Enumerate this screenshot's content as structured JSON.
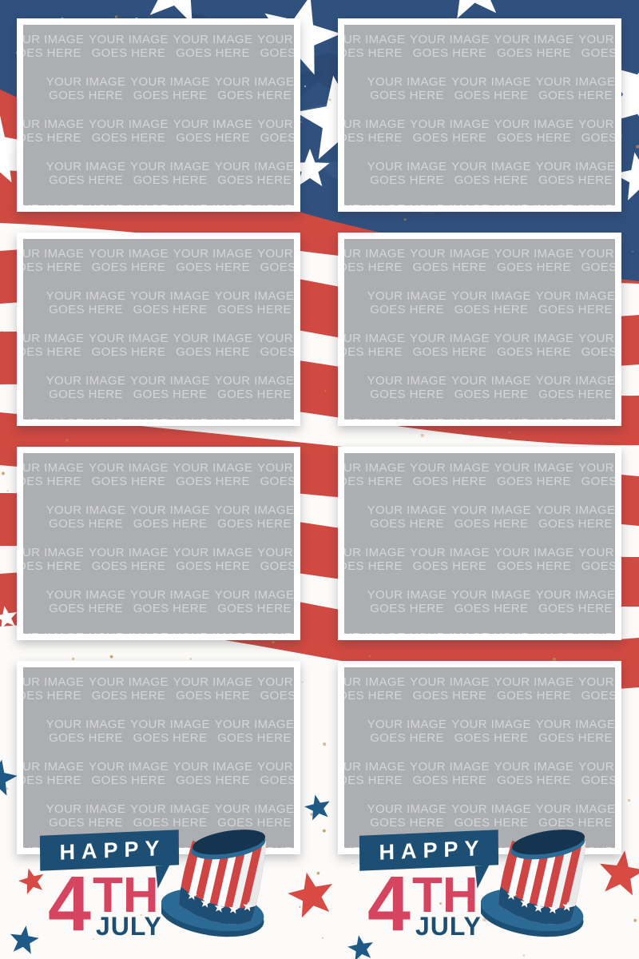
{
  "placeholder": {
    "line1": "YOUR IMAGE",
    "line2": "GOES HERE",
    "slot_count": 8
  },
  "logo": {
    "happy": "HAPPY",
    "day": "4",
    "suffix": "TH",
    "month": "JULY"
  },
  "logos_count": 2,
  "icons": {
    "hat": "uncle-sam-hat-icon",
    "star": "star-icon",
    "banner": "speech-banner"
  },
  "colors": {
    "page_bg": "#fcfbf9",
    "flag_red": "#d04a42",
    "flag_blue": "#30517e",
    "flag_blue_dark": "#27446c",
    "flag_blue_dark2": "#24466f",
    "flag_blue_light": "#3d6396",
    "star_white": "#ffffff",
    "frame_white": "#ffffff",
    "placeholder_gray": "#adaeb1",
    "watermark_text": "#d5d6d9",
    "logo_blue": "#1d4f74",
    "logo_red": "#d64560",
    "decor_star_red": "#d84a44",
    "decor_star_blue": "#1f5a86",
    "hat_red": "#cf4543",
    "hat_brim_blue": "#2a6a95",
    "hat_band_blue": "#1e4e73",
    "hat_top_navy": "#14344f",
    "speckle_gold": "#bf9055"
  }
}
